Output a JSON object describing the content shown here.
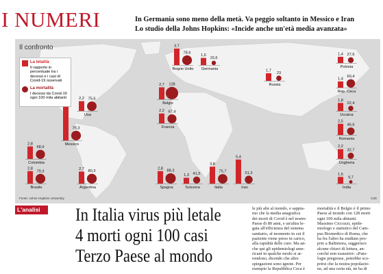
{
  "header": {
    "kicker": "I NUMERI",
    "lines": [
      "In Germania sono meno della metà. Va peggio soltanto in Messico e Iran",
      "Lo studio della Johns Hopkins: «Incide anche un'età media avanzata»"
    ]
  },
  "chart_data": {
    "type": "bar",
    "title": "Il confronto",
    "categories": [
      "Messico",
      "Usa",
      "Regno Unito",
      "Germania",
      "Belgio",
      "Francia",
      "Russia",
      "Polonia",
      "Rep. Ceca",
      "Ucraina",
      "Romania",
      "Ungheria",
      "India",
      "Colombia",
      "Brasile",
      "Argentina",
      "Spagna",
      "Svizzera",
      "Italia",
      "Iran"
    ],
    "series": [
      {
        "name": "La letalità",
        "description": "Il rapporto in percentuale tra i decessi e i casi di Covid-19 osservati",
        "color": "#d0262a",
        "values": [
          9.8,
          2.2,
          3.7,
          1.6,
          2.7,
          2.2,
          1.7,
          1.4,
          1.4,
          1.8,
          2.5,
          2.2,
          1.5,
          2.8,
          2.8,
          2.7,
          2.8,
          1.3,
          3.8,
          5.4
        ],
        "value_labels": [
          "9,8",
          "2,2",
          "3,7",
          "1,6",
          "2,7",
          "2,2",
          "1,7",
          "1,4",
          "1,4",
          "1,8",
          "2,5",
          "2,2",
          "1,5",
          "2,8",
          "2,8",
          "2,7",
          "2,8",
          "1,3",
          "3,8",
          "5,4"
        ]
      },
      {
        "name": "La mortalità",
        "description": "I decessi da Covid-19 ogni 100 mila abitanti",
        "color": "#9b1b1f",
        "values": [
          78.3,
          75.6,
          78.6,
          15.6,
          128,
          67.4,
          23,
          27.6,
          60.4,
          22.4,
          46.6,
          32.7,
          9.7,
          68.9,
          79.3,
          80.3,
          88.3,
          41.5,
          75.7,
          51.3
        ],
        "value_labels": [
          "78,3",
          "75,6",
          "78,6",
          "15,6",
          "128",
          "67,4",
          "23",
          "27,6",
          "60,4",
          "22,4",
          "46,6",
          "32,7",
          "9,7",
          "68,9",
          "79,3",
          "80,3",
          "88,3",
          "41,5",
          "75,7",
          "51,3"
        ]
      }
    ],
    "source": "Fonte: Johns Hopkins University",
    "credit": "CdS"
  },
  "article": {
    "section": "L'analisi",
    "headline": [
      "In Italia virus più letale",
      "4 morti ogni 100 casi",
      "Terzo Paese al mondo"
    ],
    "columns": [
      [
        "le più alte al mondo, e sappia-",
        "mo che la media anagrafica",
        "dei morti di Covid è nel nostro",
        "Paese di 80 anni, e un'altra le-",
        "gata all'efficienza del sistema",
        "sanitario, al momento in cui il",
        "paziente viene preso in carico,",
        "alla rapidità delle cure. Ma an-",
        "che qui gli epidemiologi ame-",
        "ricani in qualche modo si ar-",
        "rendono, dicendo che altre",
        "spiegazioni sono ignote. Per",
        "esempio la Repubblica Ceca è"
      ],
      [
        "mortalità e il Belgio è il primo",
        "Paese al mondo con 128 morti",
        "ogni 100 mila abitanti.",
        "Massimo Ciccozzi, epide-",
        "miologo e statistico del Cam-",
        "pus Biomedico di Roma, che",
        "ha fra l'altro ha studiato pro-",
        "prio a Baltimora, suggerisce",
        "alcune chiavi di lettura, an-",
        "corché non esaustive: «Pato-",
        "logie pregresse, potrebbe sco-",
        "prirsi che la nostra popolazio-",
        "ne, ad una certa età, ne ha di"
      ]
    ]
  }
}
